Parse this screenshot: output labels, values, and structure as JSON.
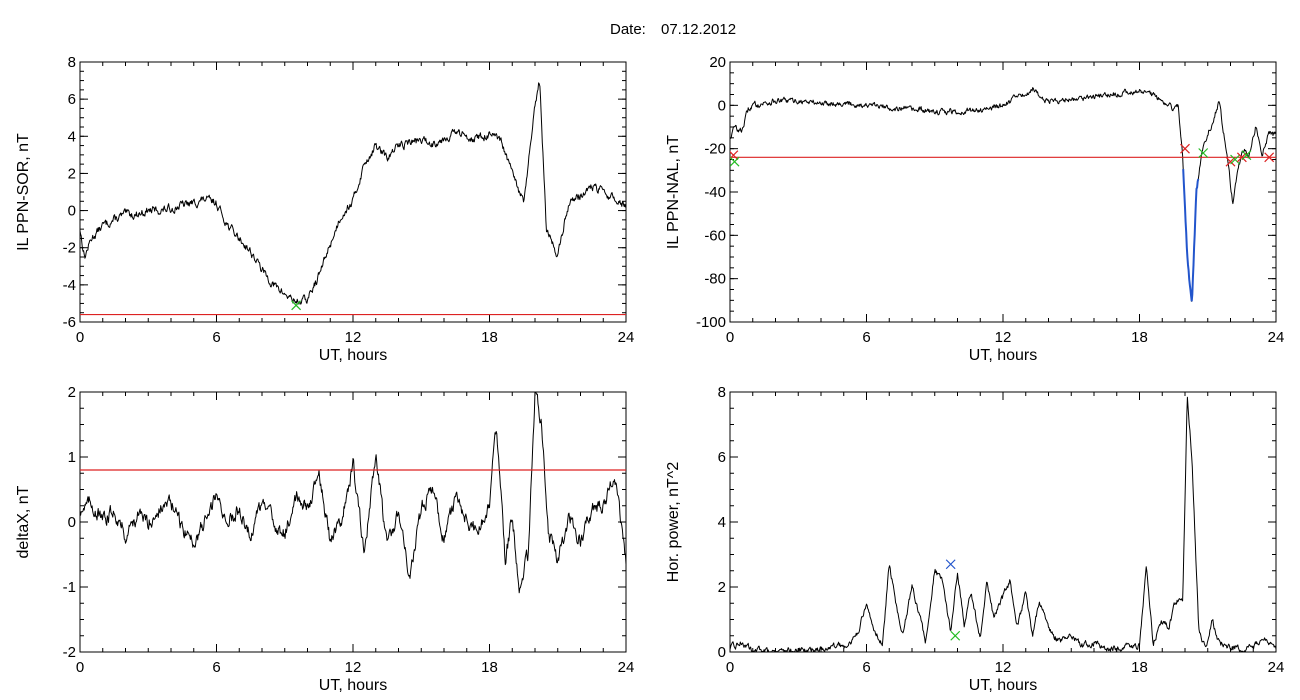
{
  "figure": {
    "date_label": "Date:",
    "date_value": "07.12.2012"
  },
  "chart_data": [
    {
      "id": "sor",
      "type": "line",
      "xlabel": "UT, hours",
      "ylabel": "IL PPN-SOR, nT",
      "xlim": [
        0,
        24
      ],
      "ylim": [
        -6,
        8
      ],
      "xticks": [
        0,
        6,
        12,
        18,
        24
      ],
      "yticks": [
        -6,
        -4,
        -2,
        0,
        2,
        4,
        6,
        8
      ],
      "line_color": "#000000",
      "series": [
        {
          "x": [
            0,
            0.2,
            0.5,
            1,
            1.5,
            2,
            2.5,
            3,
            3.5,
            4,
            4.5,
            5,
            5.5,
            6,
            6.5,
            7,
            7.5,
            8,
            8.5,
            9,
            9.5,
            10,
            10.5,
            11,
            11.5,
            12,
            12.5,
            13,
            13.5,
            14,
            14.5,
            15,
            15.5,
            16,
            16.5,
            17,
            17.5,
            18,
            18.5,
            19,
            19.5,
            20,
            20.2,
            20.5,
            21,
            21.5,
            22,
            22.5,
            23,
            23.5,
            24
          ],
          "y": [
            -1,
            -2.5,
            -1.5,
            -0.8,
            -0.5,
            -0.2,
            -0.2,
            0,
            0,
            0.1,
            0.3,
            0.4,
            0.6,
            0.4,
            -0.8,
            -1.5,
            -2.2,
            -3.2,
            -4,
            -4.5,
            -4.9,
            -4.8,
            -3.5,
            -1.8,
            -0.2,
            0.5,
            2.5,
            3.5,
            2.8,
            3.5,
            3.7,
            3.8,
            3.6,
            3.9,
            4.2,
            4,
            3.9,
            4.1,
            3.7,
            2,
            0.4,
            5.5,
            7,
            -1,
            -2.4,
            0.5,
            0.8,
            1.3,
            1,
            0.6,
            0.3
          ],
          "noise": 0.18
        }
      ],
      "threshold": -5.6,
      "markers": [
        {
          "x": 9.5,
          "y": -5.1,
          "color": "#22bb22"
        }
      ]
    },
    {
      "id": "nal",
      "type": "line",
      "xlabel": "UT, hours",
      "ylabel": "IL PPN-NAL, nT",
      "xlim": [
        0,
        24
      ],
      "ylim": [
        -100,
        20
      ],
      "xticks": [
        0,
        6,
        12,
        18,
        24
      ],
      "yticks": [
        -100,
        -80,
        -60,
        -40,
        -20,
        0,
        20
      ],
      "line_color": "#000000",
      "series": [
        {
          "x": [
            0,
            0.2,
            0.5,
            0.8,
            1,
            1.5,
            2,
            3,
            4,
            5,
            6,
            7,
            8,
            9,
            10,
            11,
            12,
            12.5,
            13,
            13.3,
            13.6,
            14,
            15,
            16,
            17,
            17.5,
            18,
            18.5,
            19,
            19.5,
            19.7,
            19.9,
            20.1,
            20.3,
            20.5,
            20.8,
            21.2,
            21.5,
            21.8,
            22.1,
            22.3,
            22.6,
            22.8,
            23.1,
            23.4,
            23.7,
            24
          ],
          "y": [
            -15,
            -10,
            -12,
            -2,
            0,
            1,
            2,
            2,
            1,
            1,
            0,
            -1,
            -2,
            -3,
            -3,
            -2,
            0,
            3,
            5,
            8,
            4,
            2,
            3,
            4,
            5,
            6,
            7,
            5,
            2,
            -2,
            0,
            -25,
            -70,
            -92,
            -40,
            -18,
            -8,
            2,
            -20,
            -45,
            -30,
            -20,
            -24,
            -10,
            -22,
            -13,
            -14
          ],
          "noise": 1.1
        }
      ],
      "threshold": -24,
      "markers": [
        {
          "x": 0.15,
          "y": -23,
          "color": "#dd2222"
        },
        {
          "x": 0.2,
          "y": -26,
          "color": "#22bb22"
        },
        {
          "x": 20.0,
          "y": -20,
          "color": "#dd2222"
        },
        {
          "x": 20.8,
          "y": -22,
          "color": "#22bb22"
        },
        {
          "x": 22.0,
          "y": -26,
          "color": "#dd2222"
        },
        {
          "x": 22.2,
          "y": -25,
          "color": "#22bb22"
        },
        {
          "x": 22.5,
          "y": -24,
          "color": "#dd2222"
        },
        {
          "x": 22.7,
          "y": -23,
          "color": "#22bb22"
        },
        {
          "x": 23.7,
          "y": -24,
          "color": "#dd2222"
        }
      ],
      "highlight": {
        "x_from": 19.9,
        "x_to": 20.6,
        "color": "#2255cc"
      }
    },
    {
      "id": "deltax",
      "type": "line",
      "xlabel": "UT, hours",
      "ylabel": "deltaX, nT",
      "xlim": [
        0,
        24
      ],
      "ylim": [
        -2,
        2
      ],
      "xticks": [
        0,
        6,
        12,
        18,
        24
      ],
      "yticks": [
        -2,
        -1,
        0,
        1,
        2
      ],
      "line_color": "#000000",
      "series": [
        {
          "x": [
            0,
            0.5,
            1,
            1.5,
            2,
            2.5,
            3,
            3.5,
            4,
            4.5,
            5,
            5.5,
            6,
            6.5,
            7,
            7.5,
            8,
            8.5,
            9,
            9.5,
            10,
            10.5,
            11,
            11.5,
            12,
            12.5,
            13,
            13.5,
            14,
            14.5,
            15,
            15.5,
            16,
            16.5,
            17,
            17.5,
            18,
            18.3,
            18.7,
            19,
            19.3,
            19.7,
            20,
            20.3,
            20.6,
            21,
            21.5,
            22,
            22.5,
            23,
            23.5,
            24
          ],
          "y": [
            0.2,
            0.3,
            0,
            0.2,
            -0.2,
            0.1,
            0,
            0.2,
            0.3,
            -0.1,
            -0.3,
            0,
            0.4,
            0,
            0.2,
            -0.2,
            0.3,
            0,
            -0.2,
            0.4,
            0.2,
            0.8,
            -0.3,
            0.1,
            0.9,
            -0.5,
            1.0,
            -0.4,
            0.2,
            -0.9,
            0.2,
            0.5,
            -0.3,
            0.4,
            0,
            -0.2,
            0.3,
            1.5,
            -0.6,
            0.1,
            -1.0,
            -0.5,
            2.0,
            1.5,
            -0.2,
            -0.6,
            0.1,
            -0.3,
            0.2,
            0.3,
            0.7,
            -0.6
          ],
          "noise": 0.09
        }
      ],
      "threshold": 0.8,
      "markers": []
    },
    {
      "id": "power",
      "type": "line",
      "xlabel": "UT, hours",
      "ylabel": "Hor. power, nT^2",
      "xlim": [
        0,
        24
      ],
      "ylim": [
        0,
        8
      ],
      "xticks": [
        0,
        6,
        12,
        18,
        24
      ],
      "yticks": [
        0,
        2,
        4,
        6,
        8
      ],
      "line_color": "#000000",
      "series": [
        {
          "x": [
            0,
            0.5,
            1,
            2,
            3,
            4,
            5,
            5.5,
            6,
            6.3,
            6.7,
            7,
            7.3,
            7.6,
            8,
            8.3,
            8.6,
            9,
            9.3,
            9.7,
            10,
            10.3,
            10.6,
            11,
            11.3,
            11.6,
            12,
            12.3,
            12.6,
            13,
            13.3,
            13.6,
            14,
            14.5,
            15,
            15.5,
            16,
            16.5,
            17,
            17.5,
            18,
            18.3,
            18.6,
            19,
            19.3,
            19.6,
            19.9,
            20.1,
            20.3,
            20.6,
            20.9,
            21.2,
            21.5,
            22,
            22.5,
            23,
            23.5,
            24
          ],
          "y": [
            0.1,
            0.3,
            0.05,
            0.05,
            0.05,
            0.1,
            0.2,
            0.4,
            1.4,
            0.8,
            0.2,
            2.7,
            1.5,
            0.5,
            2.0,
            1.2,
            0.3,
            2.5,
            2.2,
            0.6,
            2.5,
            0.8,
            1.8,
            0.4,
            2.2,
            1.0,
            1.7,
            2.2,
            0.7,
            1.8,
            0.5,
            1.6,
            0.7,
            0.3,
            0.5,
            0.2,
            0.3,
            0.1,
            0.1,
            0.2,
            0.2,
            2.6,
            0.3,
            0.9,
            0.8,
            1.6,
            1.5,
            8.0,
            6.0,
            0.8,
            0.1,
            1.0,
            0.3,
            0.1,
            0.1,
            0.1,
            0.5,
            0.1
          ],
          "noise": 0.08
        }
      ],
      "threshold": null,
      "markers": [
        {
          "x": 9.7,
          "y": 2.7,
          "color": "#2255cc"
        },
        {
          "x": 9.9,
          "y": 0.5,
          "color": "#22bb22"
        }
      ]
    }
  ]
}
